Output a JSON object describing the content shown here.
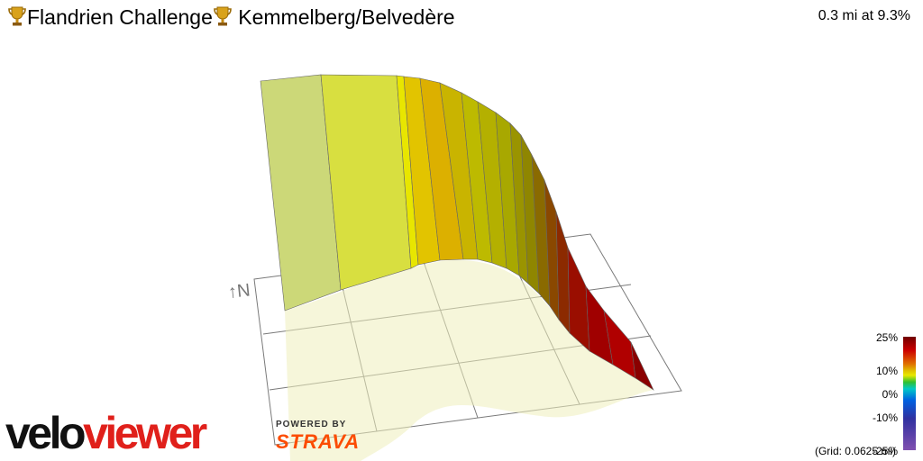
{
  "header": {
    "title_part1": "Flandrien Challenge",
    "title_part2": " Kemmelberg/Belvedère",
    "trophy_icon": "trophy-icon",
    "stats": "0.3 mi at 9.3%"
  },
  "scene": {
    "north_label": "↑N"
  },
  "branding": {
    "logo_part1": "velo",
    "logo_part2": "viewer",
    "powered_by": "POWERED BY",
    "strava": "STRAVA"
  },
  "legend": {
    "ticks": [
      "25%",
      "10%",
      "0%",
      "-10%",
      "-25%"
    ],
    "grid_note": "(Grid: 0.0625 mi)"
  },
  "colors": {
    "brand_red": "#e0201b",
    "strava_orange": "#fc4c02"
  }
}
